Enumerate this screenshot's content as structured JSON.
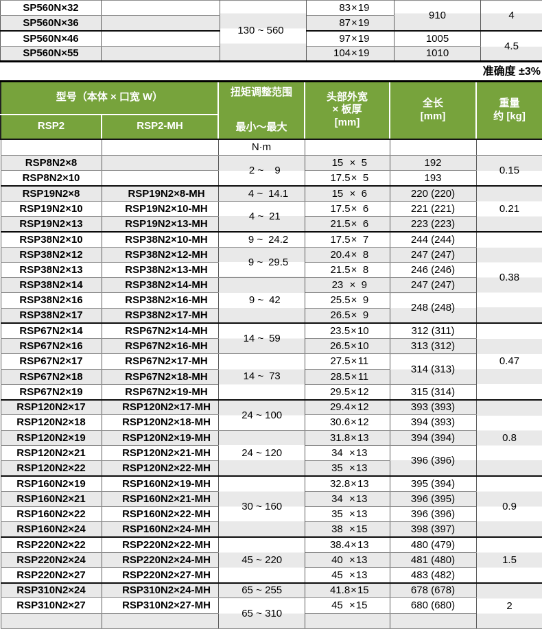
{
  "accuracy_note": "准确度 ±3%",
  "colors": {
    "header_green": "#77a33c",
    "stripe_gray": "#e9e9e9",
    "header_text": "#ffffff",
    "grid_line": "#5a5a5a",
    "group_line": "#0a0a0a"
  },
  "top_table": {
    "torque": {
      "min": "130",
      "max": "560"
    },
    "rows": [
      {
        "model": "SP560N×32",
        "head": {
          "w": "83",
          "t": "19"
        },
        "len": "910",
        "len_span": 2,
        "wt": "4",
        "wt_span": 2
      },
      {
        "model": "SP560N×36",
        "head": {
          "w": "87",
          "t": "19"
        }
      },
      {
        "model": "SP560N×46",
        "head": {
          "w": "97",
          "t": "19"
        },
        "len": "1005",
        "len_span": 1,
        "wt": "4.5",
        "wt_span": 2,
        "sep": true
      },
      {
        "model": "SP560N×55",
        "head": {
          "w": "104",
          "t": "19"
        },
        "len": "1010",
        "len_span": 1
      }
    ]
  },
  "main_table": {
    "header": {
      "model": "型号（本体 × 口宽 W）",
      "sub1": "RSP2",
      "sub2": "RSP2-MH",
      "torque_l1": "扭矩调整范围",
      "torque_l2": "最小～最大",
      "head_l1": "头部外宽",
      "head_l2": "× 板厚",
      "head_l3": "[mm]",
      "len_l1": "全长",
      "len_l2": "[mm]",
      "wt_l1": "重量",
      "wt_l2": "约 [kg]",
      "unit": "N·m"
    },
    "rows": [
      {
        "m1": "RSP8N2×8",
        "m2": "",
        "tq": {
          "min": "2",
          "max": "9",
          "span": 2
        },
        "hd": {
          "w": "15",
          "t": "5"
        },
        "ln": {
          "v": "192",
          "span": 1
        },
        "wt": {
          "v": "0.15",
          "span": 2
        }
      },
      {
        "m1": "RSP8N2×10",
        "m2": "",
        "hd": {
          "w": "17.5",
          "t": "5"
        },
        "ln": {
          "v": "193",
          "span": 1
        }
      },
      {
        "m1": "RSP19N2×8",
        "m2": "RSP19N2×8-MH",
        "tq": {
          "min": "4",
          "max": "14.1",
          "span": 1
        },
        "hd": {
          "w": "15",
          "t": "6"
        },
        "ln": {
          "v": "220 (220)",
          "span": 1
        },
        "wt": {
          "v": "0.21",
          "span": 3
        },
        "sep": true
      },
      {
        "m1": "RSP19N2×10",
        "m2": "RSP19N2×10-MH",
        "tq": {
          "min": "4",
          "max": "21",
          "span": 2
        },
        "hd": {
          "w": "17.5",
          "t": "6"
        },
        "ln": {
          "v": "221 (221)",
          "span": 1
        }
      },
      {
        "m1": "RSP19N2×13",
        "m2": "RSP19N2×13-MH",
        "hd": {
          "w": "21.5",
          "t": "6"
        },
        "ln": {
          "v": "223 (223)",
          "span": 1
        }
      },
      {
        "m1": "RSP38N2×10",
        "m2": "RSP38N2×10-MH",
        "tq": {
          "min": "9",
          "max": "24.2",
          "span": 1
        },
        "hd": {
          "w": "17.5",
          "t": "7"
        },
        "ln": {
          "v": "244 (244)",
          "span": 1
        },
        "wt": {
          "v": "0.38",
          "span": 6
        },
        "sep": true
      },
      {
        "m1": "RSP38N2×12",
        "m2": "RSP38N2×12-MH",
        "tq": {
          "min": "9",
          "max": "29.5",
          "span": 2
        },
        "hd": {
          "w": "20.4",
          "t": "8"
        },
        "ln": {
          "v": "247 (247)",
          "span": 1
        }
      },
      {
        "m1": "RSP38N2×13",
        "m2": "RSP38N2×13-MH",
        "hd": {
          "w": "21.5",
          "t": "8"
        },
        "ln": {
          "v": "246 (246)",
          "span": 1
        }
      },
      {
        "m1": "RSP38N2×14",
        "m2": "RSP38N2×14-MH",
        "tq": {
          "min": "9",
          "max": "42",
          "span": 3
        },
        "hd": {
          "w": "23",
          "t": "9"
        },
        "ln": {
          "v": "247 (247)",
          "span": 1
        }
      },
      {
        "m1": "RSP38N2×16",
        "m2": "RSP38N2×16-MH",
        "hd": {
          "w": "25.5",
          "t": "9"
        },
        "ln": {
          "v": "248 (248)",
          "span": 2
        }
      },
      {
        "m1": "RSP38N2×17",
        "m2": "RSP38N2×17-MH",
        "hd": {
          "w": "26.5",
          "t": "9"
        }
      },
      {
        "m1": "RSP67N2×14",
        "m2": "RSP67N2×14-MH",
        "tq": {
          "min": "14",
          "max": "59",
          "span": 2
        },
        "hd": {
          "w": "23.5",
          "t": "10"
        },
        "ln": {
          "v": "312 (311)",
          "span": 1
        },
        "wt": {
          "v": "0.47",
          "span": 5
        },
        "sep": true
      },
      {
        "m1": "RSP67N2×16",
        "m2": "RSP67N2×16-MH",
        "hd": {
          "w": "26.5",
          "t": "10"
        },
        "ln": {
          "v": "313 (312)",
          "span": 1
        }
      },
      {
        "m1": "RSP67N2×17",
        "m2": "RSP67N2×17-MH",
        "tq": {
          "min": "14",
          "max": "73",
          "span": 3
        },
        "hd": {
          "w": "27.5",
          "t": "11"
        },
        "ln": {
          "v": "314 (313)",
          "span": 2
        }
      },
      {
        "m1": "RSP67N2×18",
        "m2": "RSP67N2×18-MH",
        "hd": {
          "w": "28.5",
          "t": "11"
        }
      },
      {
        "m1": "RSP67N2×19",
        "m2": "RSP67N2×19-MH",
        "hd": {
          "w": "29.5",
          "t": "12"
        },
        "ln": {
          "v": "315 (314)",
          "span": 1
        }
      },
      {
        "m1": "RSP120N2×17",
        "m2": "RSP120N2×17-MH",
        "tq": {
          "min": "24",
          "max": "100",
          "span": 2
        },
        "hd": {
          "w": "29.4",
          "t": "12"
        },
        "ln": {
          "v": "393 (393)",
          "span": 1
        },
        "wt": {
          "v": "0.8",
          "span": 5
        },
        "sep": true
      },
      {
        "m1": "RSP120N2×18",
        "m2": "RSP120N2×18-MH",
        "hd": {
          "w": "30.6",
          "t": "12"
        },
        "ln": {
          "v": "394 (393)",
          "span": 1
        }
      },
      {
        "m1": "RSP120N2×19",
        "m2": "RSP120N2×19-MH",
        "tq": {
          "min": "24",
          "max": "120",
          "span": 3
        },
        "hd": {
          "w": "31.8",
          "t": "13"
        },
        "ln": {
          "v": "394 (394)",
          "span": 1
        }
      },
      {
        "m1": "RSP120N2×21",
        "m2": "RSP120N2×21-MH",
        "hd": {
          "w": "34",
          "t": "13"
        },
        "ln": {
          "v": "396 (396)",
          "span": 2
        }
      },
      {
        "m1": "RSP120N2×22",
        "m2": "RSP120N2×22-MH",
        "hd": {
          "w": "35",
          "t": "13"
        }
      },
      {
        "m1": "RSP160N2×19",
        "m2": "RSP160N2×19-MH",
        "tq": {
          "min": "30",
          "max": "160",
          "span": 4
        },
        "hd": {
          "w": "32.8",
          "t": "13"
        },
        "ln": {
          "v": "395 (394)",
          "span": 1
        },
        "wt": {
          "v": "0.9",
          "span": 4
        },
        "sep": true
      },
      {
        "m1": "RSP160N2×21",
        "m2": "RSP160N2×21-MH",
        "hd": {
          "w": "34",
          "t": "13"
        },
        "ln": {
          "v": "396 (395)",
          "span": 1
        }
      },
      {
        "m1": "RSP160N2×22",
        "m2": "RSP160N2×22-MH",
        "hd": {
          "w": "35",
          "t": "13"
        },
        "ln": {
          "v": "396 (396)",
          "span": 1
        }
      },
      {
        "m1": "RSP160N2×24",
        "m2": "RSP160N2×24-MH",
        "hd": {
          "w": "38",
          "t": "15"
        },
        "ln": {
          "v": "398 (397)",
          "span": 1
        }
      },
      {
        "m1": "RSP220N2×22",
        "m2": "RSP220N2×22-MH",
        "tq": {
          "min": "45",
          "max": "220",
          "span": 3
        },
        "hd": {
          "w": "38.4",
          "t": "13"
        },
        "ln": {
          "v": "480 (479)",
          "span": 1
        },
        "wt": {
          "v": "1.5",
          "span": 3
        },
        "sep": true
      },
      {
        "m1": "RSP220N2×24",
        "m2": "RSP220N2×24-MH",
        "hd": {
          "w": "40",
          "t": "13"
        },
        "ln": {
          "v": "481 (480)",
          "span": 1
        }
      },
      {
        "m1": "RSP220N2×27",
        "m2": "RSP220N2×27-MH",
        "hd": {
          "w": "45",
          "t": "13"
        },
        "ln": {
          "v": "483 (482)",
          "span": 1
        }
      },
      {
        "m1": "RSP310N2×24",
        "m2": "RSP310N2×24-MH",
        "tq": {
          "min": "65",
          "max": "255",
          "span": 1
        },
        "hd": {
          "w": "41.8",
          "t": "15"
        },
        "ln": {
          "v": "678 (678)",
          "span": 1
        },
        "wt": {
          "v": "2",
          "span": 3
        },
        "sep": true
      },
      {
        "m1": "RSP310N2×27",
        "m2": "RSP310N2×27-MH",
        "tq": {
          "min": "65",
          "max": "310",
          "span": 2
        },
        "hd": {
          "w": "45",
          "t": "15"
        },
        "ln": {
          "v": "680 (680)",
          "span": 1
        }
      },
      {
        "m1": "",
        "m2": "",
        "hd": null,
        "ln": {
          "v": "",
          "span": 1
        }
      }
    ]
  }
}
